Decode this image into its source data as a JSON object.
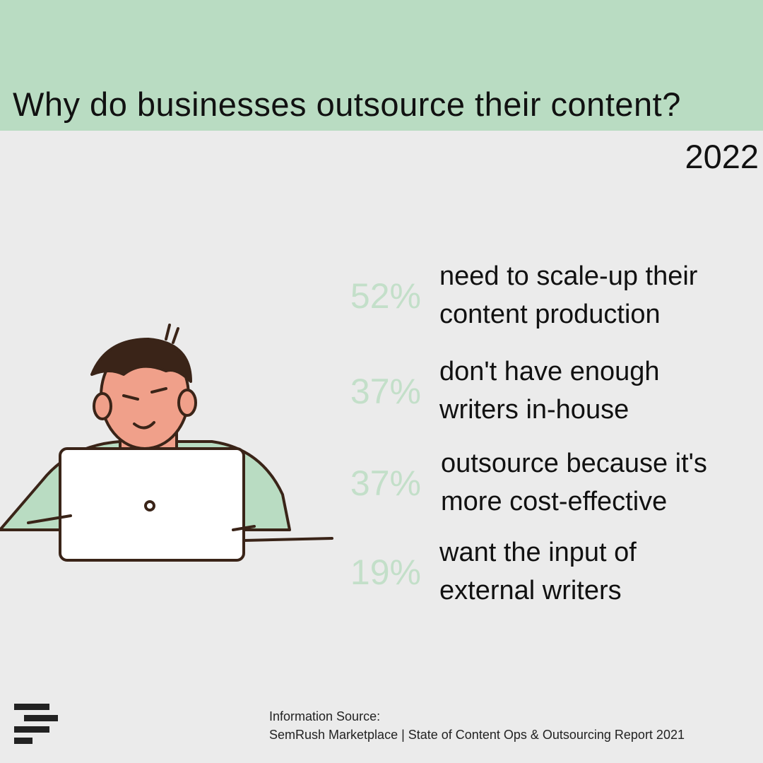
{
  "header": {
    "title": "Why do businesses outsource their content?",
    "year": "2022"
  },
  "stats": [
    {
      "value": "52%",
      "lines": [
        "need to scale-up their",
        "content production"
      ]
    },
    {
      "value": "37%",
      "lines": [
        "don't have enough",
        "writers in-house"
      ]
    },
    {
      "value": "37%",
      "lines": [
        "outsource because it's",
        "more cost-effective"
      ]
    },
    {
      "value": "19%",
      "lines": [
        "want the input of",
        "external writers"
      ]
    }
  ],
  "source": {
    "label": "Information Source:",
    "text": "SemRush Marketplace | State of Content Ops & Outsourcing Report 2021"
  }
}
